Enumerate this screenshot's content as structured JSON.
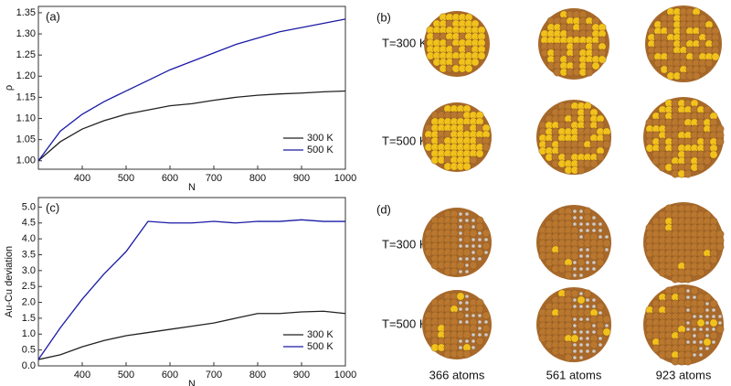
{
  "chart_data": [
    {
      "type": "line",
      "panel_label": "(a)",
      "x_label": "N",
      "y_label": "ρ",
      "x": [
        300,
        350,
        400,
        450,
        500,
        550,
        600,
        650,
        700,
        750,
        800,
        850,
        900,
        950,
        1000
      ],
      "series": [
        {
          "name": "300 K",
          "color": "#222222",
          "values": [
            1.0,
            1.045,
            1.075,
            1.095,
            1.11,
            1.12,
            1.13,
            1.135,
            1.143,
            1.15,
            1.155,
            1.158,
            1.16,
            1.163,
            1.165
          ]
        },
        {
          "name": "500 K",
          "color": "#1a1aa6",
          "values": [
            1.0,
            1.07,
            1.11,
            1.14,
            1.165,
            1.19,
            1.215,
            1.235,
            1.255,
            1.275,
            1.29,
            1.305,
            1.315,
            1.325,
            1.335
          ]
        }
      ],
      "xlim": [
        300,
        1000
      ],
      "xticks": [
        400,
        500,
        600,
        700,
        800,
        900,
        1000
      ],
      "ylim": [
        0.98,
        1.365
      ],
      "yticks": [
        {
          "value": 1.0,
          "label": "1.00"
        },
        {
          "value": 1.05,
          "label": "1.05"
        },
        {
          "value": 1.1,
          "label": "1.10"
        },
        {
          "value": 1.15,
          "label": "1.15"
        },
        {
          "value": 1.2,
          "label": "1.20"
        },
        {
          "value": 1.25,
          "label": "1.25"
        },
        {
          "value": 1.3,
          "label": "1.30"
        },
        {
          "value": 1.35,
          "label": "1.35"
        }
      ],
      "legend": "lower right"
    },
    {
      "type": "line",
      "panel_label": "(c)",
      "x_label": "N",
      "y_label": "Au-Cu deviation",
      "x": [
        300,
        350,
        400,
        450,
        500,
        550,
        600,
        650,
        700,
        750,
        800,
        850,
        900,
        950,
        1000
      ],
      "series": [
        {
          "name": "300 K",
          "color": "#222222",
          "values": [
            0.2,
            0.35,
            0.6,
            0.8,
            0.95,
            1.05,
            1.15,
            1.25,
            1.35,
            1.5,
            1.65,
            1.65,
            1.7,
            1.72,
            1.65
          ]
        },
        {
          "name": "500 K",
          "color": "#1a1aa6",
          "values": [
            0.2,
            1.2,
            2.1,
            2.9,
            3.6,
            4.55,
            4.5,
            4.5,
            4.55,
            4.5,
            4.55,
            4.55,
            4.6,
            4.55,
            4.55
          ]
        }
      ],
      "xlim": [
        300,
        1000
      ],
      "xticks": [
        400,
        500,
        600,
        700,
        800,
        900,
        1000
      ],
      "ylim": [
        0,
        5.3
      ],
      "yticks": [
        {
          "value": 0,
          "label": "0.0"
        },
        {
          "value": 0.5,
          "label": "0.5"
        },
        {
          "value": 1,
          "label": "1.0"
        },
        {
          "value": 1.5,
          "label": "1.5"
        },
        {
          "value": 2,
          "label": "2.0"
        },
        {
          "value": 2.5,
          "label": "2.5"
        },
        {
          "value": 3,
          "label": "3.0"
        },
        {
          "value": 3.5,
          "label": "3.5"
        },
        {
          "value": 4,
          "label": "4.0"
        },
        {
          "value": 4.5,
          "label": "4.5"
        },
        {
          "value": 5,
          "label": "5.0"
        }
      ],
      "legend": "lower right"
    }
  ],
  "panels": {
    "b": {
      "label": "(b)",
      "rows": [
        "T=300 K",
        "T=500 K"
      ]
    },
    "d": {
      "label": "(d)",
      "rows": [
        "T=300 K",
        "T=500 K"
      ],
      "columns": [
        "366 atoms",
        "561 atoms",
        "923 atoms"
      ]
    }
  }
}
